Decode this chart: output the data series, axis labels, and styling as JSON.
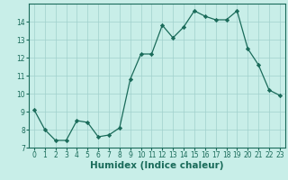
{
  "x": [
    0,
    1,
    2,
    3,
    4,
    5,
    6,
    7,
    8,
    9,
    10,
    11,
    12,
    13,
    14,
    15,
    16,
    17,
    18,
    19,
    20,
    21,
    22,
    23
  ],
  "y": [
    9.1,
    8.0,
    7.4,
    7.4,
    8.5,
    8.4,
    7.6,
    7.7,
    8.1,
    10.8,
    12.2,
    12.2,
    13.8,
    13.1,
    13.7,
    14.6,
    14.3,
    14.1,
    14.1,
    14.6,
    12.5,
    11.6,
    10.2,
    9.9
  ],
  "xlim": [
    -0.5,
    23.5
  ],
  "ylim": [
    7,
    15
  ],
  "yticks": [
    7,
    8,
    9,
    10,
    11,
    12,
    13,
    14
  ],
  "xticks": [
    0,
    1,
    2,
    3,
    4,
    5,
    6,
    7,
    8,
    9,
    10,
    11,
    12,
    13,
    14,
    15,
    16,
    17,
    18,
    19,
    20,
    21,
    22,
    23
  ],
  "xlabel": "Humidex (Indice chaleur)",
  "line_color": "#1a6b5a",
  "marker": "D",
  "marker_size": 2.2,
  "bg_color": "#c8eee8",
  "grid_color": "#a0d0cc",
  "tick_fontsize": 5.5,
  "label_fontsize": 7.5
}
